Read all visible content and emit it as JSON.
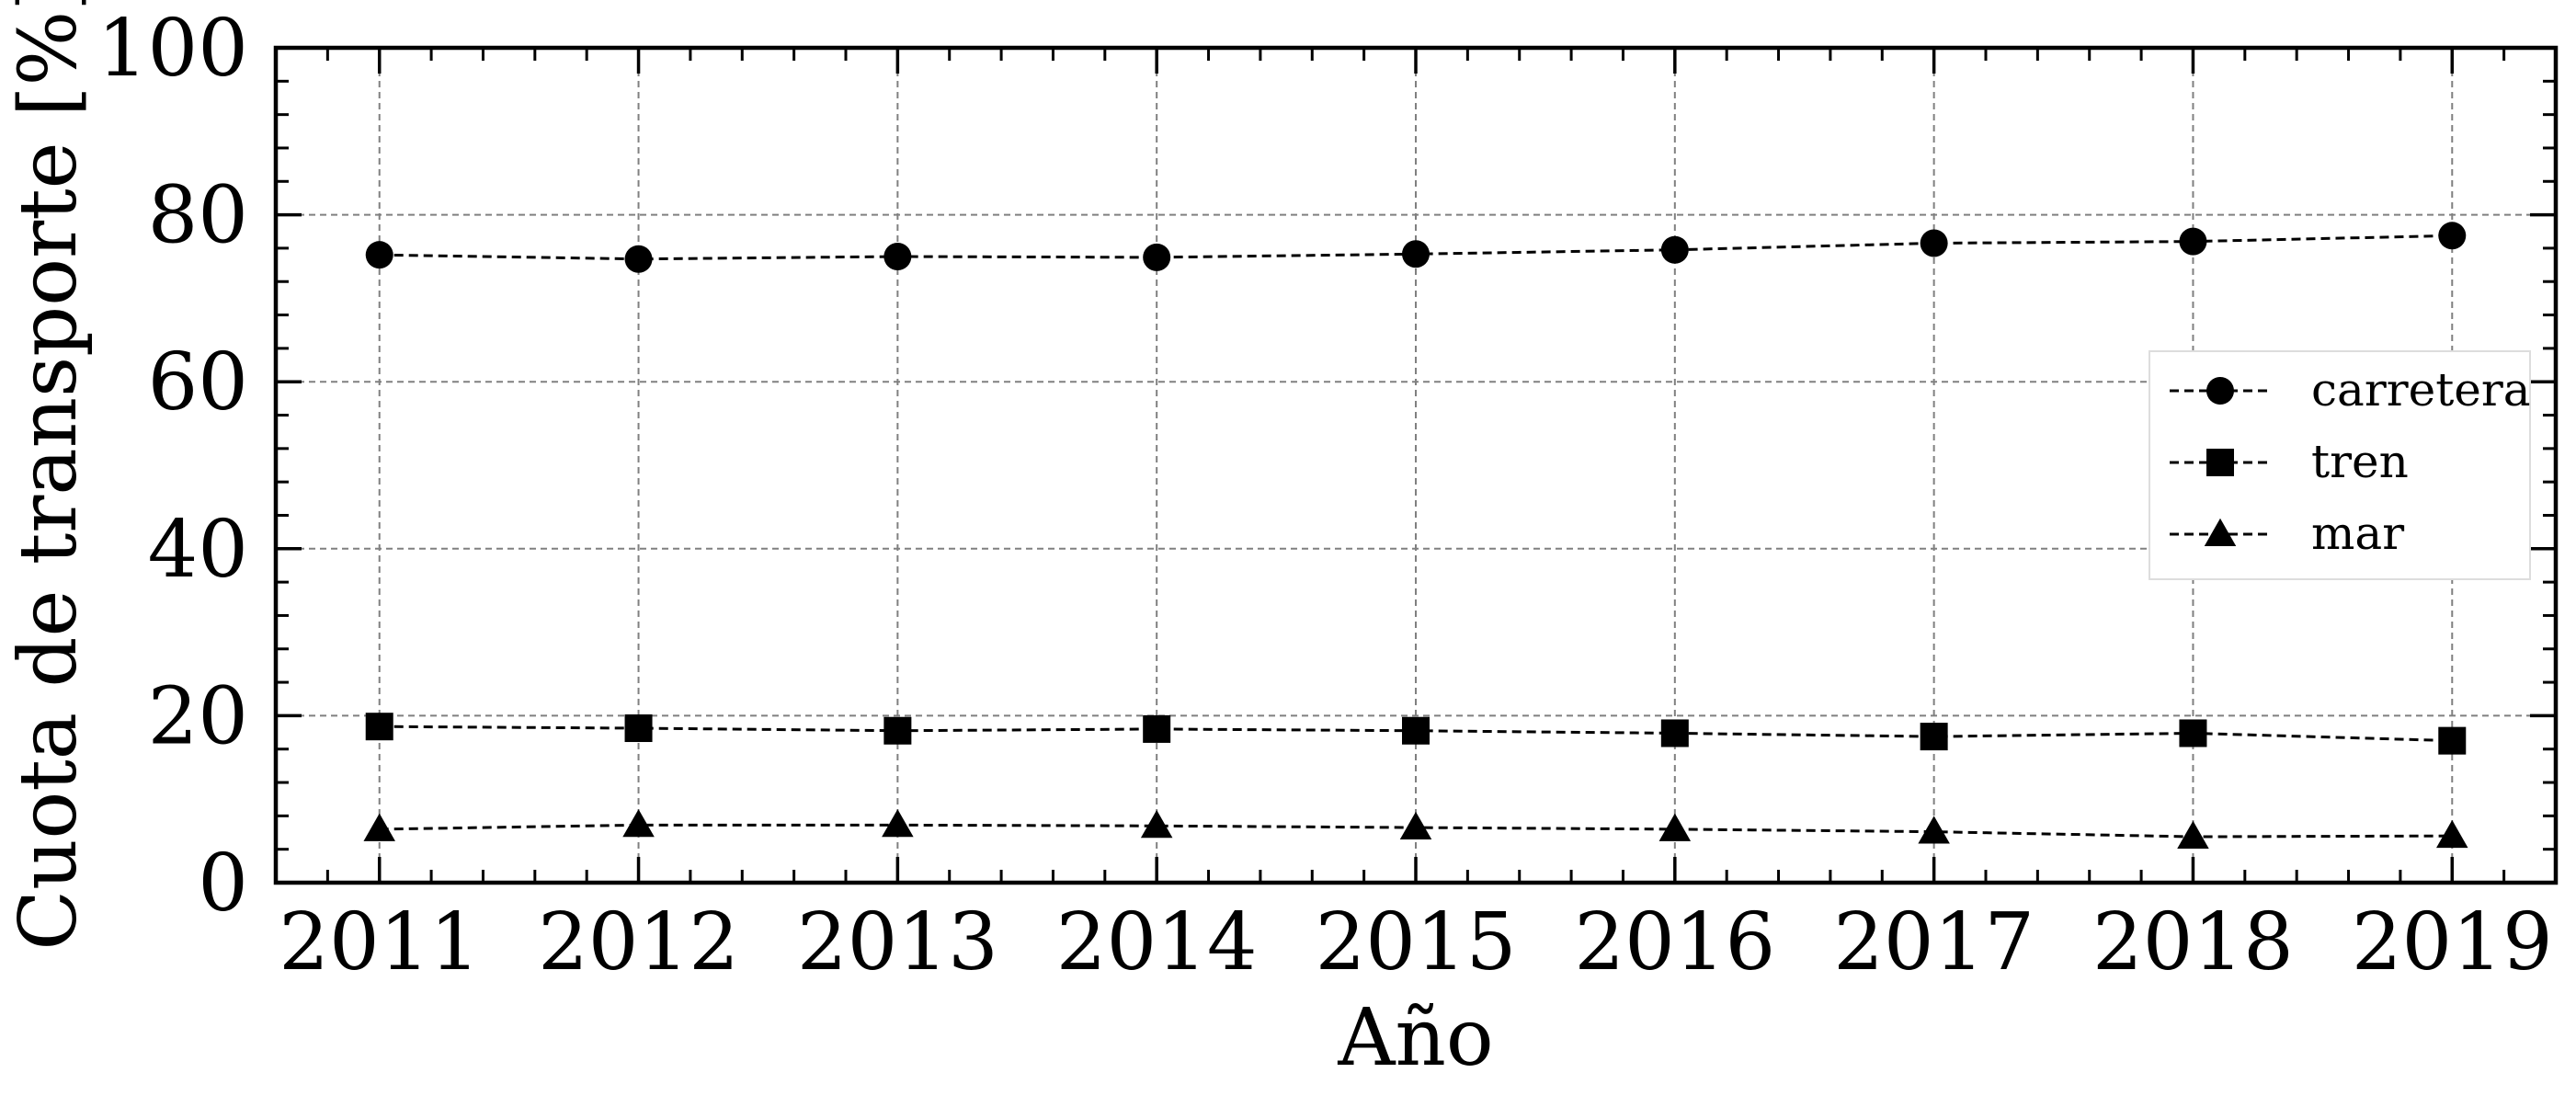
{
  "chart_data": {
    "type": "line",
    "xlabel": "Año",
    "ylabel": "Cuota de transporte [%]",
    "x": [
      2011,
      2012,
      2013,
      2014,
      2015,
      2016,
      2017,
      2018,
      2019
    ],
    "xlim": [
      2010.6,
      2019.4
    ],
    "ylim": [
      0,
      100
    ],
    "yticks": [
      0,
      20,
      40,
      60,
      80,
      100
    ],
    "grid": true,
    "legend_position": "right",
    "series": [
      {
        "name": "carretera",
        "marker": "circle",
        "values": [
          75.2,
          74.7,
          75.0,
          74.9,
          75.3,
          75.8,
          76.6,
          76.8,
          77.5
        ]
      },
      {
        "name": "tren",
        "marker": "square",
        "values": [
          18.7,
          18.5,
          18.2,
          18.4,
          18.2,
          17.9,
          17.5,
          17.9,
          17.0
        ]
      },
      {
        "name": "mar",
        "marker": "triangle",
        "values": [
          6.4,
          6.9,
          6.9,
          6.8,
          6.6,
          6.4,
          6.1,
          5.5,
          5.6
        ]
      }
    ]
  }
}
